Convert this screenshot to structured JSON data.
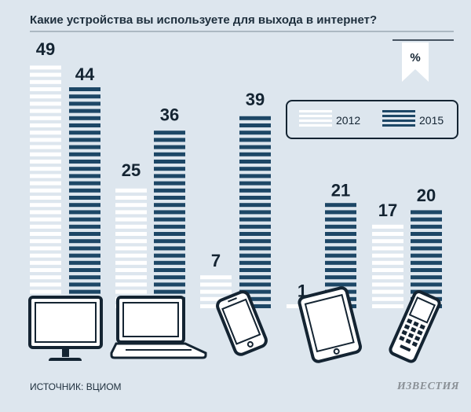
{
  "chart_data": {
    "type": "bar",
    "title": "Какие устройства вы используете для выхода в интернет?",
    "unit": "%",
    "categories": [
      "Настольный компьютер",
      "Ноутбук",
      "Смартфон",
      "Планшет",
      "Мобильный телефон"
    ],
    "series": [
      {
        "name": "2012",
        "values": [
          49,
          25,
          7,
          1,
          17
        ]
      },
      {
        "name": "2015",
        "values": [
          44,
          36,
          39,
          21,
          20
        ]
      }
    ],
    "ylim": [
      0,
      49
    ]
  },
  "legend": {
    "y2012": "2012",
    "y2015": "2015"
  },
  "source": "ИСТОЧНИК: ВЦИОМ",
  "brand": "ИЗВЕСТИЯ",
  "colors": {
    "background": "#dde6ee",
    "stripe_2012": "#ffffff",
    "stripe_2015": "#1d4766",
    "ink": "#142432"
  },
  "icons": [
    "desktop-monitor-icon",
    "laptop-icon",
    "smartphone-icon",
    "tablet-icon",
    "mobile-phone-icon"
  ]
}
